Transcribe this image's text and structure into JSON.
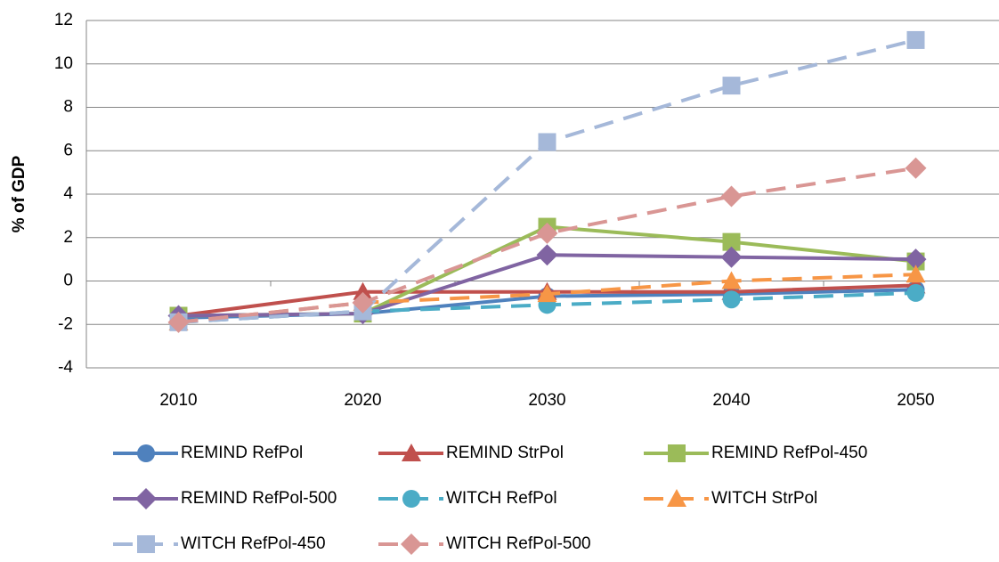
{
  "chart_data": {
    "type": "line",
    "y_label": "% of GDP",
    "categories": [
      "2010",
      "2020",
      "2030",
      "2040",
      "2050"
    ],
    "series": [
      {
        "name": "REMIND RefPol",
        "color": "#4f81bd",
        "marker": "circle",
        "dashed": false,
        "values": [
          -1.7,
          -1.5,
          -0.7,
          -0.6,
          -0.4
        ]
      },
      {
        "name": "REMIND StrPol",
        "color": "#c0504d",
        "marker": "triangle",
        "dashed": false,
        "values": [
          -1.6,
          -0.5,
          -0.5,
          -0.5,
          -0.2
        ]
      },
      {
        "name": "REMIND RefPol-450",
        "color": "#9bbb59",
        "marker": "square",
        "dashed": false,
        "values": [
          -1.6,
          -1.5,
          2.5,
          1.8,
          0.9
        ]
      },
      {
        "name": "REMIND RefPol-500",
        "color": "#8064a2",
        "marker": "diamond",
        "dashed": false,
        "values": [
          -1.6,
          -1.5,
          1.2,
          1.1,
          1.0
        ]
      },
      {
        "name": "WITCH RefPol",
        "color": "#4bacc6",
        "marker": "circle",
        "dashed": true,
        "values": [
          -1.9,
          -1.4,
          -1.1,
          -0.85,
          -0.55
        ]
      },
      {
        "name": "WITCH StrPol",
        "color": "#f79646",
        "marker": "triangle",
        "dashed": true,
        "values": [
          -1.9,
          -1.0,
          -0.6,
          0.0,
          0.3
        ]
      },
      {
        "name": "WITCH RefPol-450",
        "color": "#a5b8d9",
        "marker": "square",
        "dashed": true,
        "values": [
          -1.9,
          -1.4,
          6.4,
          9.0,
          11.1
        ]
      },
      {
        "name": "WITCH RefPol-500",
        "color": "#d99694",
        "marker": "diamond",
        "dashed": true,
        "values": [
          -1.9,
          -1.0,
          2.2,
          3.9,
          5.2
        ]
      }
    ],
    "ylim": [
      -4,
      12
    ],
    "yticks": [
      -4,
      -2,
      0,
      2,
      4,
      6,
      8,
      10,
      12
    ],
    "grid": true,
    "legend": "bottom"
  }
}
